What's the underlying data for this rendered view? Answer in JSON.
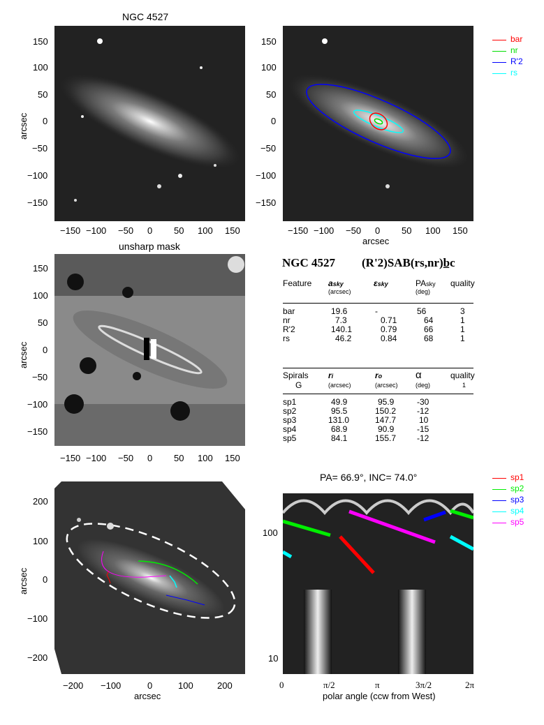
{
  "titles": {
    "panel1": "NGC 4527",
    "panel3": "unsharp mask",
    "panel6": "PA=  66.9°, INC=  74.0°"
  },
  "axes": {
    "arcsec": "arcsec",
    "ticks_175": [
      "150",
      "100",
      "50",
      "0",
      "−50",
      "−100",
      "−150"
    ],
    "xticks_175": [
      "−150",
      "−100",
      "−50",
      "0",
      "50",
      "100",
      "150"
    ],
    "ticks_250": [
      "200",
      "100",
      "0",
      "−100",
      "−200"
    ],
    "xticks_250": [
      "−200",
      "−100",
      "0",
      "100",
      "200"
    ],
    "polar_xlabel": "polar angle (ccw from West)",
    "polar_xticks": [
      "0",
      "π/2",
      "π",
      "3π/2",
      "2π"
    ],
    "polar_yticks": [
      "100",
      "10"
    ]
  },
  "legend_top": [
    {
      "label": "bar",
      "color": "#ff0000"
    },
    {
      "label": "nr",
      "color": "#00dd00"
    },
    {
      "label": "R'2",
      "color": "#0000ff"
    },
    {
      "label": "rs",
      "color": "#00ffff"
    }
  ],
  "legend_bottom": [
    {
      "label": "sp1",
      "color": "#ff0000"
    },
    {
      "label": "sp2",
      "color": "#00ee00"
    },
    {
      "label": "sp3",
      "color": "#0000ff"
    },
    {
      "label": "sp4",
      "color": "#00ffff"
    },
    {
      "label": "sp5",
      "color": "#ff00ff"
    }
  ],
  "classification": {
    "name": "NGC 4527",
    "type": "(R'2)SAB(rs,nr)b̲c"
  },
  "features_table": {
    "headers": [
      "Feature",
      "a",
      "(arcsec)",
      "ε",
      "PA",
      "(deg)",
      "quality"
    ],
    "header_subs": [
      "sky",
      "sky",
      "sky"
    ],
    "rows": [
      [
        "bar",
        "19.6",
        "-",
        "56",
        "3"
      ],
      [
        "nr",
        "7.3",
        "0.71",
        "64",
        "1"
      ],
      [
        "R'2",
        "140.1",
        "0.79",
        "66",
        "1"
      ],
      [
        "rs",
        "46.2",
        "0.84",
        "68",
        "1"
      ]
    ]
  },
  "spirals_table": {
    "headers": [
      "Spirals",
      "r",
      "(arcsec)",
      "r",
      "(arcsec)",
      "α",
      "(deg)",
      "quality"
    ],
    "header_subs": [
      "i",
      "o"
    ],
    "group": "G",
    "quality": "1",
    "rows": [
      [
        "sp1",
        "49.9",
        "95.9",
        "-30"
      ],
      [
        "sp2",
        "95.5",
        "150.2",
        "-12"
      ],
      [
        "sp3",
        "131.0",
        "147.7",
        "10"
      ],
      [
        "sp4",
        "68.9",
        "90.9",
        "-15"
      ],
      [
        "sp5",
        "84.1",
        "155.7",
        "-12"
      ]
    ]
  }
}
